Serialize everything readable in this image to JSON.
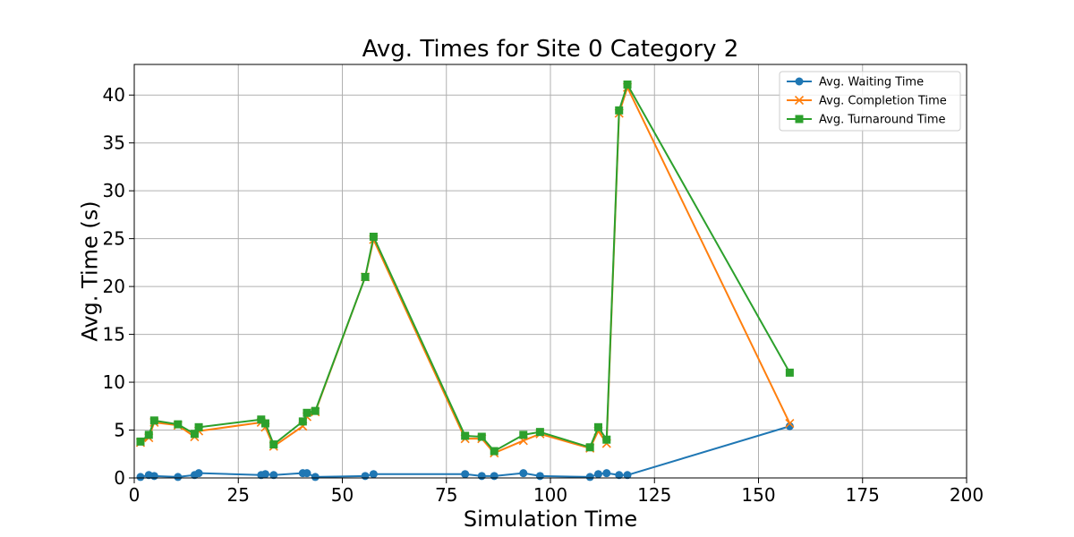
{
  "chart_data": {
    "type": "line",
    "title": "Avg. Times for Site 0 Category 2",
    "xlabel": "Simulation Time",
    "ylabel": "Avg. Time (s)",
    "xlim": [
      0,
      200
    ],
    "ylim": [
      0,
      43.2
    ],
    "xticks": [
      0,
      25,
      50,
      75,
      100,
      125,
      150,
      175,
      200
    ],
    "yticks": [
      0,
      5,
      10,
      15,
      20,
      25,
      30,
      35,
      40
    ],
    "grid": true,
    "legend_position": "top-right",
    "x": [
      1.5,
      3.5,
      4.8,
      10.5,
      14.5,
      15.5,
      30.5,
      31.5,
      33.5,
      40.5,
      41.5,
      43.5,
      55.5,
      57.5,
      79.5,
      83.5,
      86.5,
      93.5,
      97.5,
      109.5,
      111.5,
      113.5,
      116.5,
      118.5,
      157.5
    ],
    "series": [
      {
        "name": "Avg. Waiting Time",
        "color": "#1f77b4",
        "marker": "circle",
        "values": [
          0.1,
          0.3,
          0.2,
          0.1,
          0.3,
          0.5,
          0.3,
          0.4,
          0.3,
          0.5,
          0.5,
          0.1,
          0.2,
          0.4,
          0.4,
          0.2,
          0.2,
          0.5,
          0.2,
          0.1,
          0.4,
          0.5,
          0.3,
          0.3,
          5.4
        ]
      },
      {
        "name": "Avg. Completion Time",
        "color": "#ff7f0e",
        "marker": "x",
        "values": [
          3.7,
          4.2,
          5.8,
          5.5,
          4.3,
          4.9,
          5.8,
          5.3,
          3.3,
          5.4,
          6.4,
          6.9,
          21.0,
          24.9,
          4.1,
          4.1,
          2.6,
          3.9,
          4.6,
          3.1,
          4.9,
          3.6,
          38.1,
          40.8,
          5.7
        ]
      },
      {
        "name": "Avg. Turnaround Time",
        "color": "#2ca02c",
        "marker": "square",
        "values": [
          3.8,
          4.5,
          6.0,
          5.6,
          4.6,
          5.3,
          6.1,
          5.7,
          3.5,
          5.9,
          6.8,
          7.0,
          21.0,
          25.2,
          4.4,
          4.3,
          2.8,
          4.5,
          4.8,
          3.2,
          5.3,
          4.0,
          38.4,
          41.1,
          11.0
        ]
      }
    ]
  }
}
